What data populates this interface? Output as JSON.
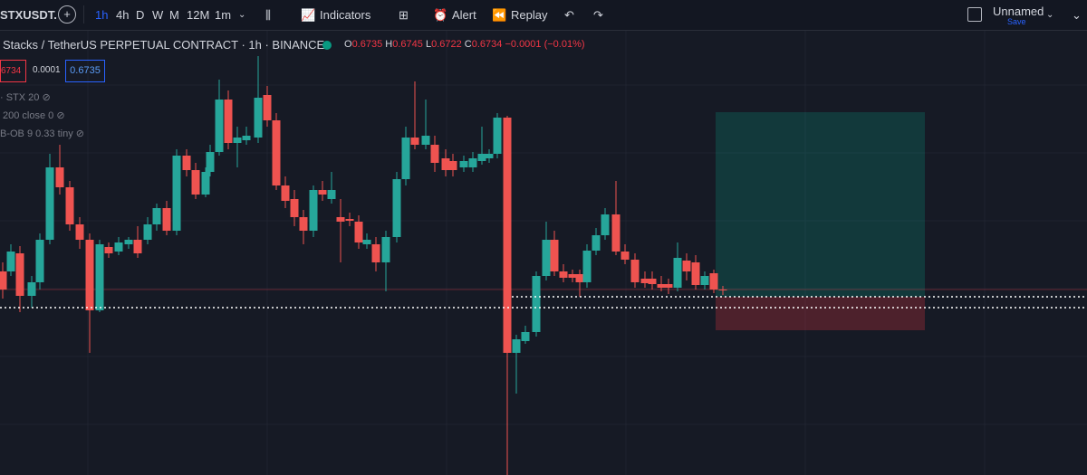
{
  "toolbar": {
    "symbol": "STXUSDT.",
    "intervals": [
      "1h",
      "4h",
      "D",
      "W",
      "M",
      "12M",
      "1m"
    ],
    "indicators": "Indicators",
    "alert": "Alert",
    "replay": "Replay",
    "layout_name": "Unnamed",
    "save": "Save"
  },
  "legend": {
    "title": "Stacks / TetherUS PERPETUAL CONTRACT · 1h · BINANCE",
    "open_label": "O",
    "open": "0.6735",
    "high_label": "H",
    "high": "0.6745",
    "low_label": "L",
    "low": "0.6722",
    "close_label": "C",
    "close": "0.6734",
    "change": "−0.0001 (−0.01%)"
  },
  "price_boxes": {
    "bid": "6734",
    "spread": "0.0001",
    "ask": "0.6735"
  },
  "studies": [
    "· STX 20",
    "200 close 0",
    "B-OB 9 0.33 tiny"
  ]
}
